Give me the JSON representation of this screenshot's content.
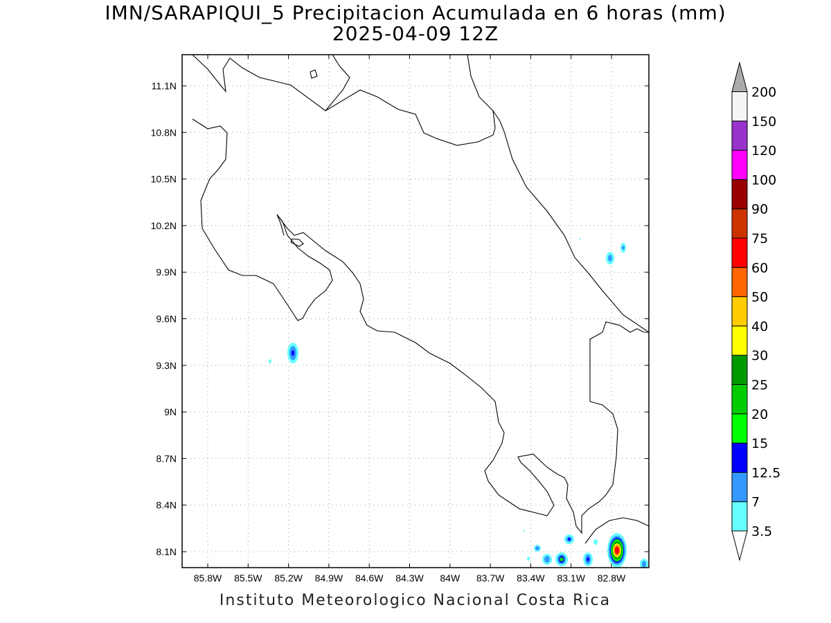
{
  "title_line1": "IMN/SARAPIQUI_5 Precipitacion Acumulada en 6 horas (mm)",
  "title_line2": "2025-04-09 12Z",
  "footer": "Instituto Meteorologico Nacional Costa Rica",
  "map": {
    "lon_ticks": [
      "85.8W",
      "85.5W",
      "85.2W",
      "84.9W",
      "84.6W",
      "84.3W",
      "84W",
      "83.7W",
      "83.4W",
      "83.1W",
      "82.8W"
    ],
    "lat_ticks": [
      "11.1N",
      "10.8N",
      "10.5N",
      "10.2N",
      "9.9N",
      "9.6N",
      "9.3N",
      "9N",
      "8.7N",
      "8.4N",
      "8.1N"
    ],
    "grid": true
  },
  "colorbar": {
    "levels": [
      "3.5",
      "7",
      "12.5",
      "15",
      "20",
      "25",
      "30",
      "40",
      "50",
      "60",
      "75",
      "90",
      "100",
      "120",
      "150",
      "200"
    ],
    "colors": [
      "#ffffff",
      "#66ffff",
      "#3399ff",
      "#0000ff",
      "#00ff00",
      "#00cc00",
      "#009900",
      "#ffff00",
      "#ffcc00",
      "#ff6600",
      "#ff0000",
      "#cc3300",
      "#990000",
      "#ff00ff",
      "#9933cc",
      "#f5f5f5",
      "#aaaaaa"
    ]
  }
}
